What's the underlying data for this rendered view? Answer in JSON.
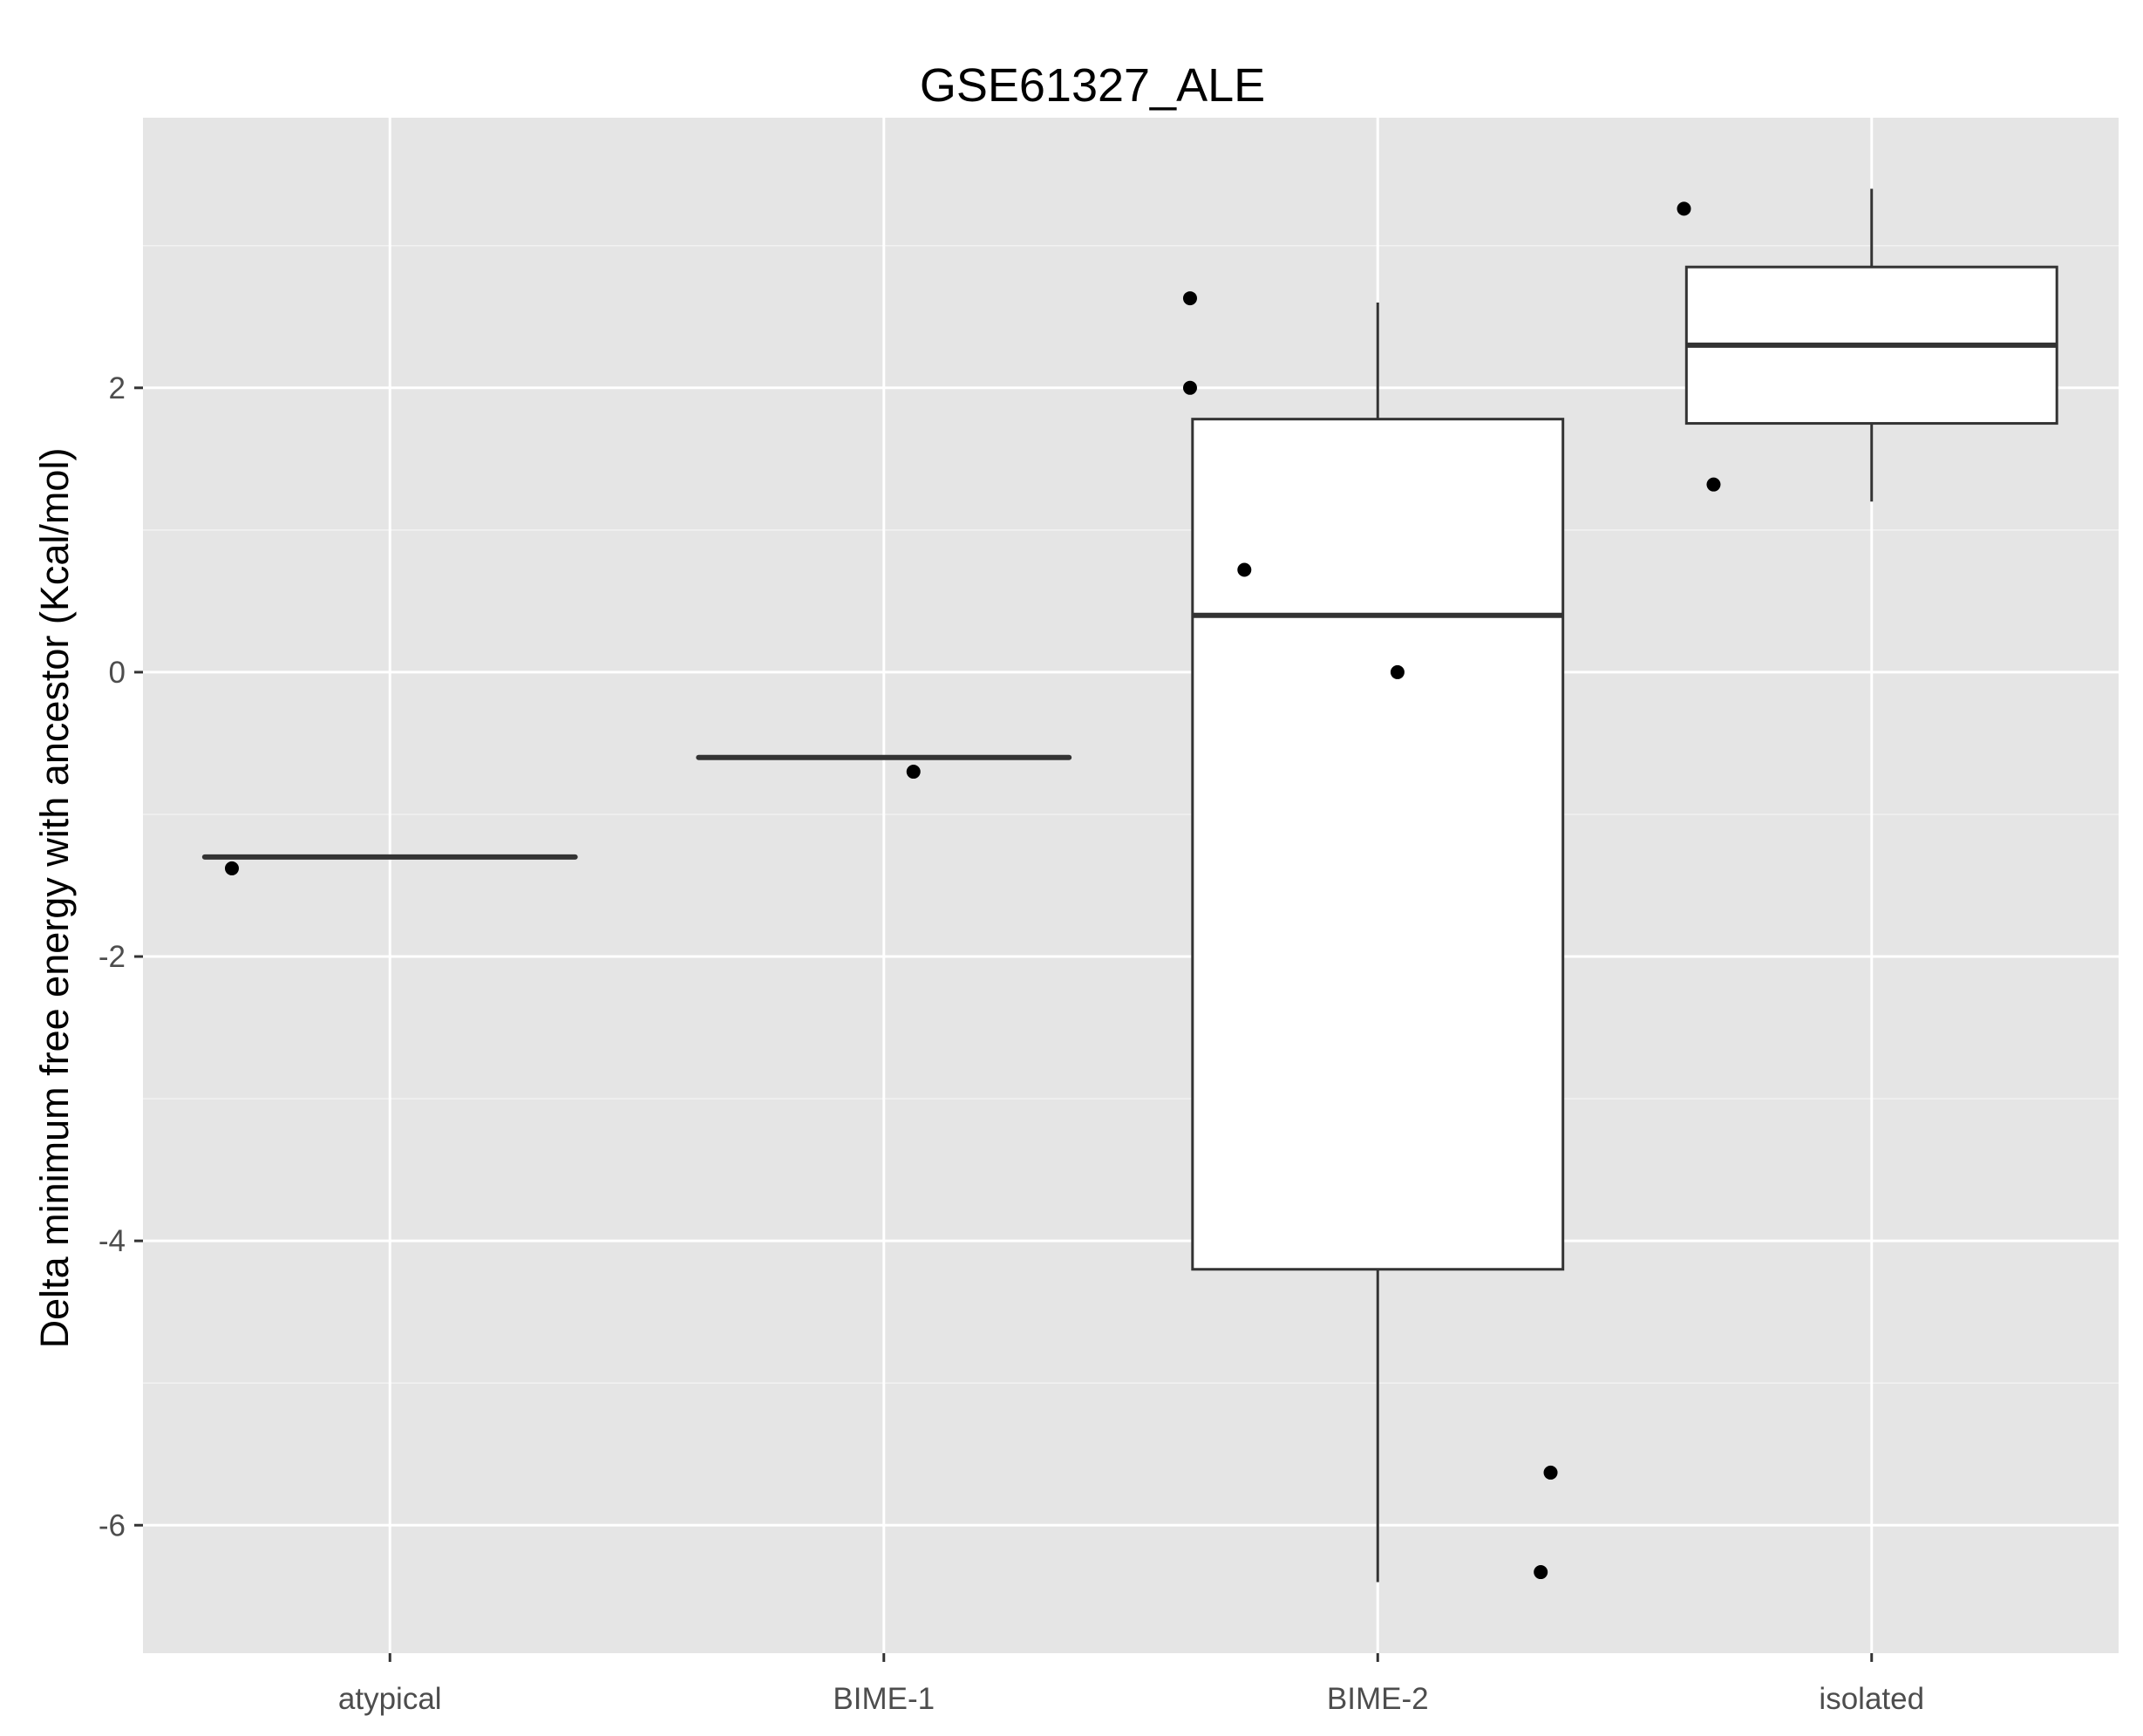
{
  "chart_data": {
    "type": "boxplot",
    "title": "GSE61327_ALE",
    "xlabel": "",
    "ylabel": "Delta minimum free energy with ancestor (Kcal/mol)",
    "categories": [
      "atypical",
      "BIME-1",
      "BIME-2",
      "isolated"
    ],
    "ylim": [
      -6.9,
      3.9
    ],
    "yticks": [
      -6,
      -4,
      -2,
      0,
      2
    ],
    "yticklabels": [
      "-6",
      "-4",
      "-2",
      "0",
      "2"
    ],
    "grid": true,
    "legend": "none",
    "boxes": [
      {
        "category": "atypical",
        "min": -1.3,
        "q1": -1.3,
        "median": -1.3,
        "q3": -1.3,
        "max": -1.3
      },
      {
        "category": "BIME-1",
        "min": -0.6,
        "q1": -0.6,
        "median": -0.6,
        "q3": -0.6,
        "max": -0.6
      },
      {
        "category": "BIME-2",
        "min": -6.4,
        "q1": -4.2,
        "median": 0.4,
        "q3": 1.78,
        "max": 2.6
      },
      {
        "category": "isolated",
        "min": 1.2,
        "q1": 1.75,
        "median": 2.3,
        "q3": 2.85,
        "max": 3.4
      }
    ],
    "points": [
      {
        "category": "atypical",
        "jitter": -0.32,
        "y": -1.38
      },
      {
        "category": "BIME-1",
        "jitter": 0.06,
        "y": -0.7
      },
      {
        "category": "BIME-2",
        "jitter": -0.38,
        "y": 2.63
      },
      {
        "category": "BIME-2",
        "jitter": -0.38,
        "y": 2.0
      },
      {
        "category": "BIME-2",
        "jitter": -0.27,
        "y": 0.72
      },
      {
        "category": "BIME-2",
        "jitter": 0.04,
        "y": 0.0
      },
      {
        "category": "BIME-2",
        "jitter": 0.35,
        "y": -5.63
      },
      {
        "category": "BIME-2",
        "jitter": 0.33,
        "y": -6.33
      },
      {
        "category": "isolated",
        "jitter": -0.38,
        "y": 3.26
      },
      {
        "category": "isolated",
        "jitter": -0.32,
        "y": 1.32
      }
    ],
    "colors": {
      "panel_background": "#e5e5e5",
      "grid": "#ffffff",
      "box_fill": "#ffffff",
      "box_stroke": "#333333",
      "point": "#000000",
      "tick_label": "#4d4d4d"
    }
  }
}
